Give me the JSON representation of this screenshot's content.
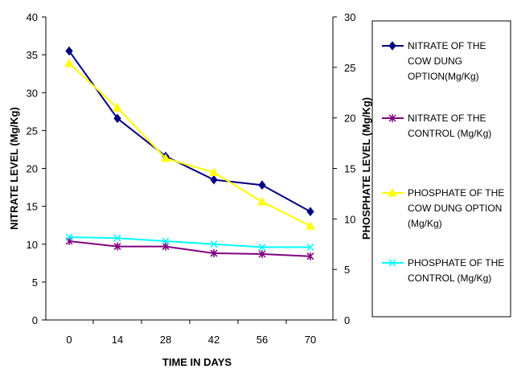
{
  "chart_data": {
    "type": "line",
    "title": "",
    "xlabel": "TIME IN DAYS",
    "ylabel_left": "NITRATE LEVEL (Mg/Kg)",
    "ylabel_right": "PHOSPHATE LEVEL (Mg/Kg)",
    "x": [
      0,
      14,
      28,
      42,
      56,
      70
    ],
    "x_tick_labels": [
      "0",
      "14",
      "28",
      "42",
      "56",
      "70"
    ],
    "ylim_left": [
      0,
      40
    ],
    "y_ticks_left": [
      "0",
      "5",
      "10",
      "15",
      "20",
      "25",
      "30",
      "35",
      "40"
    ],
    "ylim_right": [
      0,
      30
    ],
    "y_ticks_right": [
      "0",
      "5",
      "10",
      "15",
      "20",
      "25",
      "30"
    ],
    "grid": false,
    "legend_position": "right",
    "series": [
      {
        "name_lines": [
          "NITRATE OF THE",
          "COW DUNG",
          "OPTION(Mg/Kg)"
        ],
        "axis": "left",
        "color": "#000080",
        "marker": "diamond",
        "values": [
          35.5,
          26.6,
          21.6,
          18.5,
          17.8,
          14.3
        ]
      },
      {
        "name_lines": [
          "NITRATE OF THE",
          "CONTROL (Mg/Kg)"
        ],
        "axis": "left",
        "color": "#800080",
        "marker": "star",
        "values": [
          10.4,
          9.7,
          9.7,
          8.8,
          8.7,
          8.4
        ]
      },
      {
        "name_lines": [
          "PHOSPHATE OF THE",
          "COW DUNG OPTION",
          "(Mg/Kg)"
        ],
        "axis": "right",
        "color": "#ffff00",
        "marker": "triangle",
        "values": [
          25.4,
          21.0,
          16.0,
          14.6,
          11.7,
          9.3
        ]
      },
      {
        "name_lines": [
          "PHOSPHATE OF THE",
          "CONTROL (Mg/Kg)"
        ],
        "axis": "right",
        "color": "#00ffff",
        "marker": "x",
        "values": [
          8.2,
          8.1,
          7.8,
          7.5,
          7.2,
          7.2
        ]
      }
    ]
  }
}
